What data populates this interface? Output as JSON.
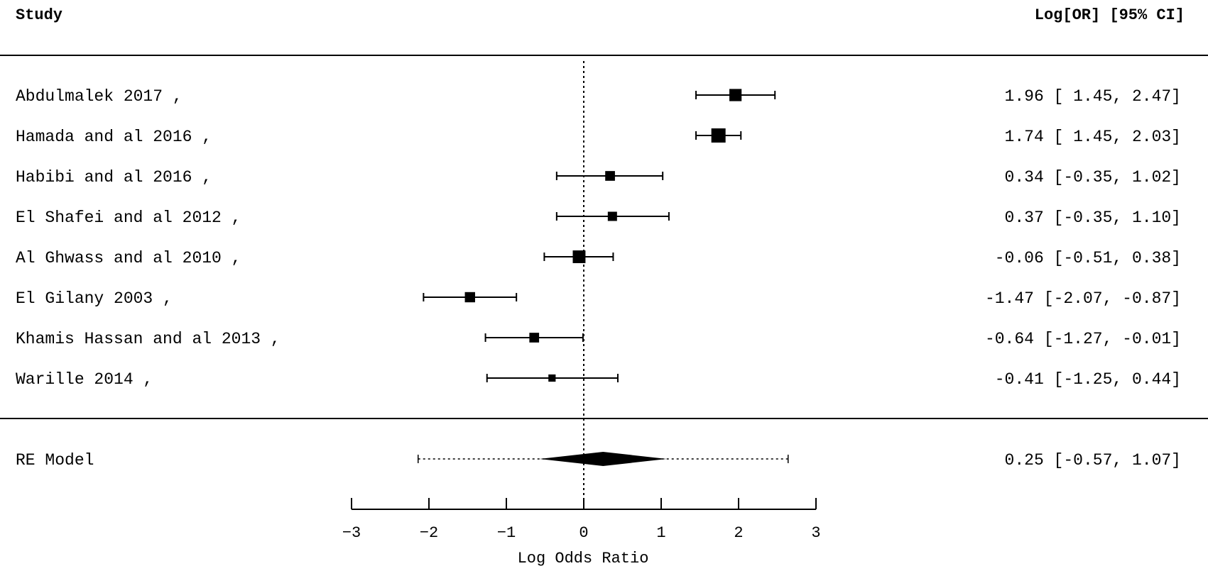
{
  "chart_data": {
    "type": "forest",
    "title": "",
    "header_left": "Study",
    "header_right": "Log[OR] [95% CI]",
    "xlabel": "Log Odds Ratio",
    "xlim": [
      -3,
      3
    ],
    "xticks": [
      -3,
      -2,
      -1,
      0,
      1,
      2,
      3
    ],
    "reference_line": 0,
    "studies": [
      {
        "label": "Abdulmalek 2017 ,",
        "estimate": 1.96,
        "lower": 1.45,
        "upper": 2.47,
        "ci_text": "1.96 [ 1.45,  2.47]",
        "weight": 0.8
      },
      {
        "label": "Hamada and al 2016 ,",
        "estimate": 1.74,
        "lower": 1.45,
        "upper": 2.03,
        "ci_text": "1.74 [ 1.45,  2.03]",
        "weight": 1.0
      },
      {
        "label": "Habibi and al 2016 ,",
        "estimate": 0.34,
        "lower": -0.35,
        "upper": 1.02,
        "ci_text": "0.34 [-0.35,  1.02]",
        "weight": 0.55
      },
      {
        "label": "El Shafei and al 2012 ,",
        "estimate": 0.37,
        "lower": -0.35,
        "upper": 1.1,
        "ci_text": "0.37 [-0.35,  1.10]",
        "weight": 0.5
      },
      {
        "label": "Al Ghwass and al 2010 ,",
        "estimate": -0.06,
        "lower": -0.51,
        "upper": 0.38,
        "ci_text": "-0.06 [-0.51,  0.38]",
        "weight": 0.85
      },
      {
        "label": "El Gilany 2003 ,",
        "estimate": -1.47,
        "lower": -2.07,
        "upper": -0.87,
        "ci_text": "-1.47 [-2.07, -0.87]",
        "weight": 0.6
      },
      {
        "label": "Khamis Hassan and al 2013 ,",
        "estimate": -0.64,
        "lower": -1.27,
        "upper": -0.01,
        "ci_text": "-0.64 [-1.27, -0.01]",
        "weight": 0.55
      },
      {
        "label": "Warille 2014 ,",
        "estimate": -0.41,
        "lower": -1.25,
        "upper": 0.44,
        "ci_text": "-0.41 [-1.25,  0.44]",
        "weight": 0.3
      }
    ],
    "summary": {
      "label": "RE Model",
      "estimate": 0.25,
      "lower": -0.57,
      "upper": 1.07,
      "pred_lower": -2.14,
      "pred_upper": 2.64,
      "ci_text": "0.25 [-0.57,  1.07]"
    },
    "colors": {
      "ink": "#000000",
      "background": "#ffffff"
    }
  }
}
